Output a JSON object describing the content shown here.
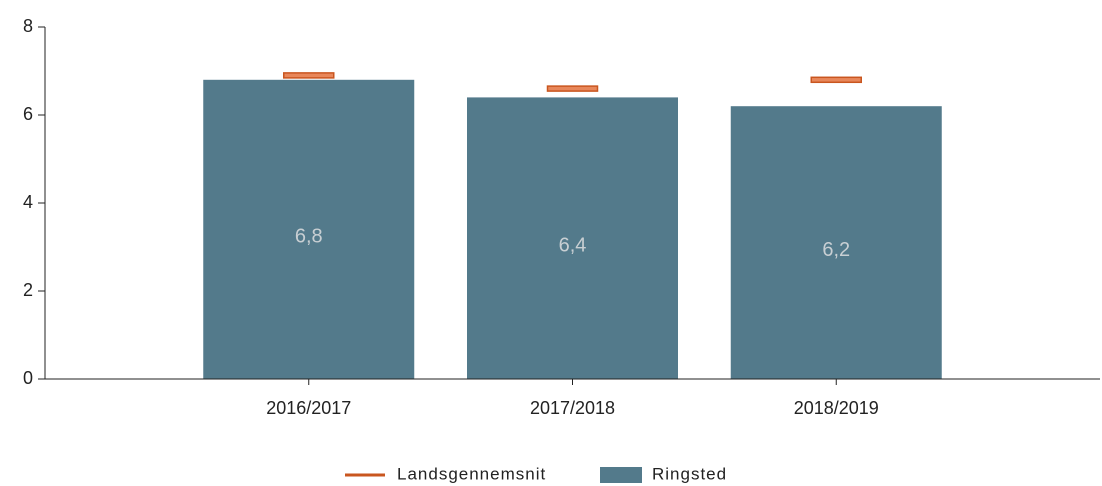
{
  "chart_data": {
    "type": "bar",
    "categories": [
      "2016/2017",
      "2017/2018",
      "2018/2019"
    ],
    "series": [
      {
        "name": "Ringsted",
        "color": "#537a8b",
        "kind": "bar",
        "values": [
          6.8,
          6.4,
          6.2
        ],
        "value_labels": [
          "6,8",
          "6,4",
          "6,2"
        ]
      },
      {
        "name": "Landsgennemsnit",
        "color": "#c9561f",
        "kind": "marker",
        "values": [
          6.9,
          6.6,
          6.8
        ]
      }
    ],
    "ylim": [
      0,
      8
    ],
    "yticks": [
      0,
      2,
      4,
      6,
      8
    ],
    "legend": "bottom"
  }
}
